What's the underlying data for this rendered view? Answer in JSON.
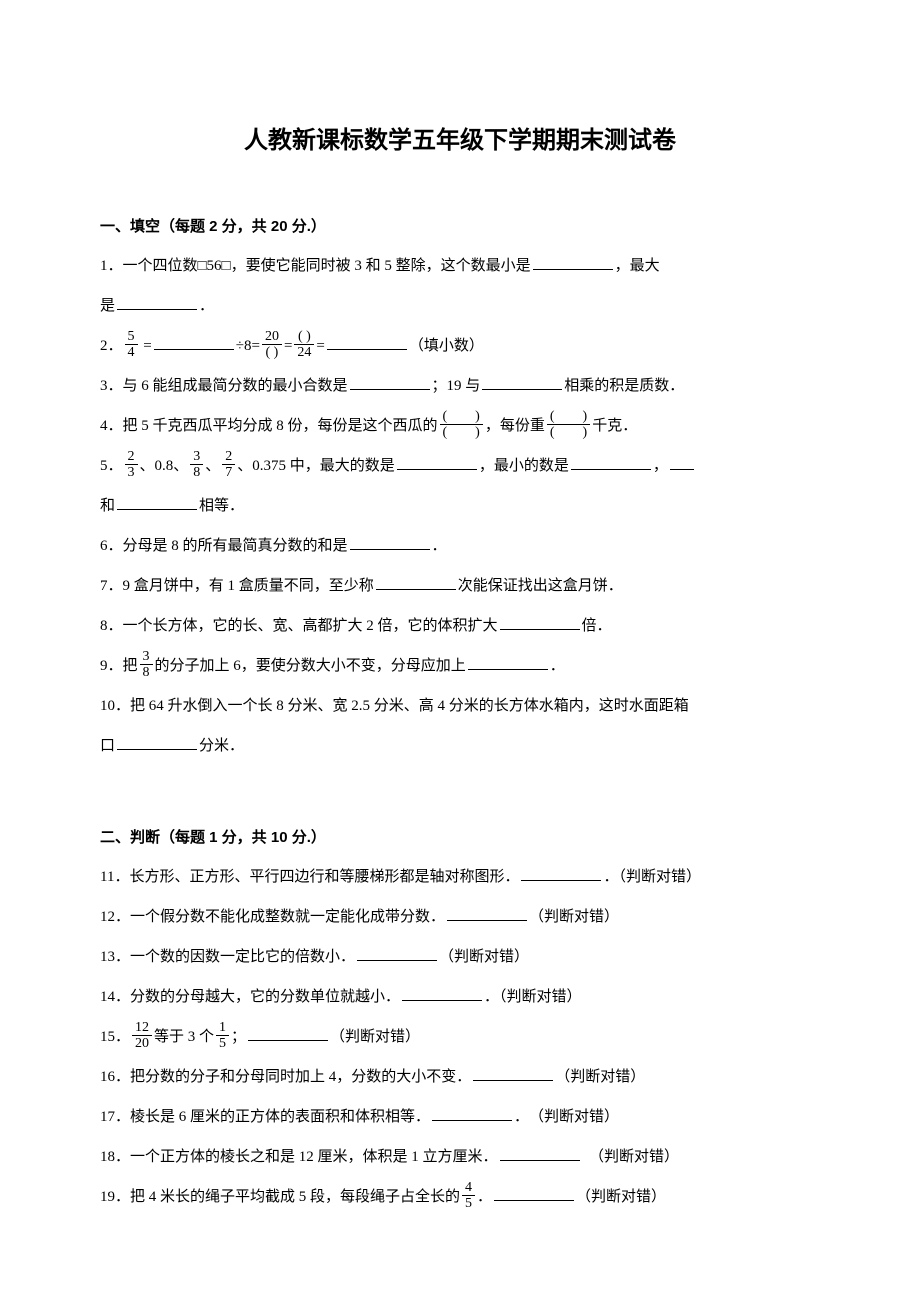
{
  "title": "人教新课标数学五年级下学期期末测试卷",
  "section1": {
    "header": "一、填空（每题 2 分，共 20 分.）",
    "q1_a": "1．一个四位数□56□，要使它能同时被 3 和 5 整除，这个数最小是",
    "q1_b": "，最大",
    "q1_c": "是",
    "q1_d": "．",
    "q2_a": "2．",
    "q2_frac1_num": "5",
    "q2_frac1_den": "4",
    "q2_b": " =",
    "q2_c": "÷8=",
    "q2_frac2_num": "20",
    "q2_frac2_den": "( )",
    "q2_d": "=",
    "q2_frac3_num": "( )",
    "q2_frac3_den": "24",
    "q2_e": "=",
    "q2_f": "（填小数）",
    "q3_a": "3．与 6 能组成最简分数的最小合数是",
    "q3_b": "；19 与",
    "q3_c": "相乘的积是质数．",
    "q4_a": "4．把 5 千克西瓜平均分成 8 份，每份是这个西瓜的",
    "q4_frac1_num": "(　　)",
    "q4_frac1_den": "(　　)",
    "q4_b": "，每份重",
    "q4_frac2_num": "(　　)",
    "q4_frac2_den": "(　　)",
    "q4_c": "千克．",
    "q5_a": "5．",
    "q5_frac1_num": "2",
    "q5_frac1_den": "3",
    "q5_b": "、0.8、",
    "q5_frac2_num": "3",
    "q5_frac2_den": "8",
    "q5_c": "、",
    "q5_frac3_num": "2",
    "q5_frac3_den": "7",
    "q5_d": "、0.375 中，最大的数是",
    "q5_e": "，最小的数是",
    "q5_f": "，",
    "q5_g": "和",
    "q5_h": "相等．",
    "q6_a": "6．分母是 8 的所有最简真分数的和是",
    "q6_b": "．",
    "q7_a": "7．9 盒月饼中，有 1 盒质量不同，至少称",
    "q7_b": "次能保证找出这盒月饼．",
    "q8_a": "8．一个长方体，它的长、宽、高都扩大 2 倍，它的体积扩大",
    "q8_b": "倍．",
    "q9_a": "9．把",
    "q9_frac_num": "3",
    "q9_frac_den": "8",
    "q9_b": "的分子加上 6，要使分数大小不变，分母应加上",
    "q9_c": "．",
    "q10_a": "10．把 64 升水倒入一个长 8 分米、宽 2.5 分米、高 4 分米的长方体水箱内，这时水面距箱",
    "q10_b": "口",
    "q10_c": "分米．"
  },
  "section2": {
    "header": "二、判断（每题 1 分，共 10 分.）",
    "q11_a": "11．长方形、正方形、平行四边行和等腰梯形都是轴对称图形．",
    "q11_b": "．（判断对错）",
    "q12_a": "12．一个假分数不能化成整数就一定能化成带分数．",
    "q12_b": "（判断对错）",
    "q13_a": "13．一个数的因数一定比它的倍数小．",
    "q13_b": "（判断对错）",
    "q14_a": "14．分数的分母越大，它的分数单位就越小．",
    "q14_b": "．（判断对错）",
    "q15_a": "15．",
    "q15_frac1_num": "12",
    "q15_frac1_den": "20",
    "q15_b": "等于 3 个",
    "q15_frac2_num": "1",
    "q15_frac2_den": "5",
    "q15_c": "；",
    "q15_d": "（判断对错）",
    "q16_a": "16．把分数的分子和分母同时加上 4，分数的大小不变．",
    "q16_b": "（判断对错）",
    "q17_a": "17．棱长是 6 厘米的正方体的表面积和体积相等．",
    "q17_b": "．　（判断对错）",
    "q18_a": "18．一个正方体的棱长之和是 12 厘米，体积是 1 立方厘米．",
    "q18_b": "　（判断对错）",
    "q19_a": "19．把 4 米长的绳子平均截成 5 段，每段绳子占全长的",
    "q19_frac_num": "4",
    "q19_frac_den": "5",
    "q19_b": "．",
    "q19_c": "（判断对错）"
  }
}
